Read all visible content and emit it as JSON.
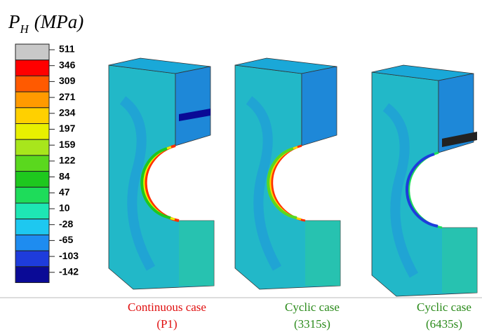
{
  "legend": {
    "symbol": "P",
    "subscript": "H",
    "unit": "(MPa)",
    "labels": [
      511,
      346,
      309,
      271,
      234,
      197,
      159,
      122,
      84,
      47,
      10,
      -28,
      -65,
      -103,
      -142
    ],
    "colors": [
      "#c8c8c8",
      "#ff0000",
      "#ff5a00",
      "#ff9a00",
      "#ffd000",
      "#e8f000",
      "#a8e61c",
      "#5ad81e",
      "#1ec81e",
      "#1edc5a",
      "#1ee6b4",
      "#1ec8f0",
      "#1e8cf0",
      "#1e3cdc",
      "#0a0a96"
    ]
  },
  "captions": [
    {
      "line1": "Continuous case",
      "line2": "(P1)",
      "color": "#e01010"
    },
    {
      "line1": "Cyclic case",
      "line2": "(3315s)",
      "color": "#2a8a1a"
    },
    {
      "line1": "Cyclic case",
      "line2": "(6435s)",
      "color": "#2a8a1a"
    }
  ]
}
